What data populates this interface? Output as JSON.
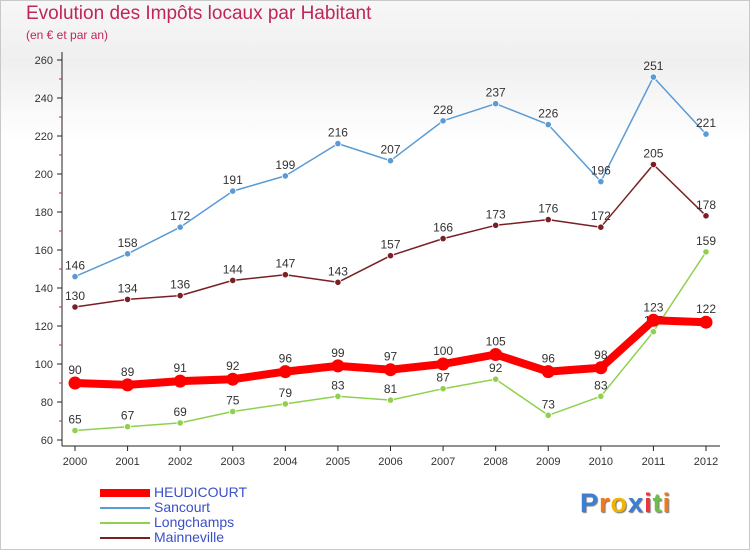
{
  "header": {
    "title": "Evolution des Impôts locaux par Habitant",
    "subtitle": "(en € et par an)"
  },
  "chart_data": {
    "type": "line",
    "title": "Evolution des Impôts locaux par Habitant",
    "subtitle": "(en € et par an)",
    "xlabel": "",
    "ylabel": "",
    "ylim": [
      60,
      260
    ],
    "yticks": [
      60,
      80,
      100,
      120,
      140,
      160,
      180,
      200,
      220,
      240,
      260
    ],
    "categories": [
      "2000",
      "2001",
      "2002",
      "2003",
      "2004",
      "2005",
      "2006",
      "2007",
      "2008",
      "2009",
      "2010",
      "2011",
      "2012"
    ],
    "grid": false,
    "legend_position": "bottom-left",
    "series": [
      {
        "name": "Sancourt",
        "color": "#5b9bd5",
        "values": [
          146,
          158,
          172,
          191,
          199,
          216,
          207,
          228,
          237,
          226,
          196,
          251,
          221
        ]
      },
      {
        "name": "Mainneville",
        "color": "#7a1f24",
        "values": [
          130,
          134,
          136,
          144,
          147,
          143,
          157,
          166,
          173,
          176,
          172,
          205,
          178
        ]
      },
      {
        "name": "Longchamps",
        "color": "#8fd14f",
        "values": [
          65,
          67,
          69,
          75,
          79,
          83,
          81,
          87,
          92,
          73,
          83,
          117,
          159
        ]
      },
      {
        "name": "HEUDICOURT",
        "color": "#ff0000",
        "values": [
          90,
          89,
          91,
          92,
          96,
          99,
          97,
          100,
          105,
          96,
          98,
          123,
          122
        ]
      }
    ]
  },
  "legend": {
    "items": [
      {
        "label": "HEUDICOURT",
        "color": "#ff0000"
      },
      {
        "label": "Sancourt",
        "color": "#5b9bd5"
      },
      {
        "label": "Longchamps",
        "color": "#8fd14f"
      },
      {
        "label": "Mainneville",
        "color": "#7a1f24"
      }
    ]
  },
  "logo": {
    "letters": [
      "P",
      "r",
      "o",
      "x",
      "i",
      "t",
      "i"
    ],
    "colors": [
      "#3b7fd4",
      "#f07a1a",
      "#f0b400",
      "#3b7fd4",
      "#e8383d",
      "#6cc04a",
      "#f07a1a"
    ]
  }
}
